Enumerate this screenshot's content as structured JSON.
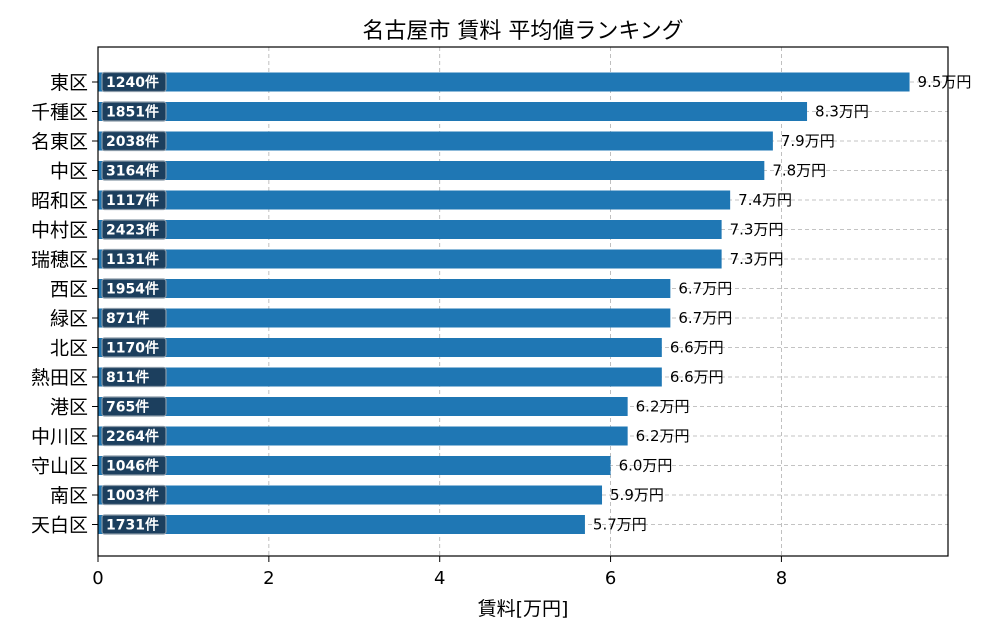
{
  "chart_data": {
    "type": "bar",
    "orientation": "horizontal",
    "title": "名古屋市 賃料 平均値ランキング",
    "xlabel": "賃料[万円]",
    "ylabel": "",
    "xlim": [
      0,
      9.95
    ],
    "xticks": [
      0,
      2,
      4,
      6,
      8
    ],
    "grid": true,
    "value_suffix": "万円",
    "count_suffix": "件",
    "bar_color": "#1f77b4",
    "badge_color": "#1c3f5e",
    "categories": [
      "東区",
      "千種区",
      "名東区",
      "中区",
      "昭和区",
      "中村区",
      "瑞穂区",
      "西区",
      "緑区",
      "北区",
      "熱田区",
      "港区",
      "中川区",
      "守山区",
      "南区",
      "天白区"
    ],
    "values": [
      9.5,
      8.3,
      7.9,
      7.8,
      7.4,
      7.3,
      7.3,
      6.7,
      6.7,
      6.6,
      6.6,
      6.2,
      6.2,
      6.0,
      5.9,
      5.7
    ],
    "counts": [
      1240,
      1851,
      2038,
      3164,
      1117,
      2423,
      1131,
      1954,
      871,
      1170,
      811,
      765,
      2264,
      1046,
      1003,
      1731
    ]
  }
}
